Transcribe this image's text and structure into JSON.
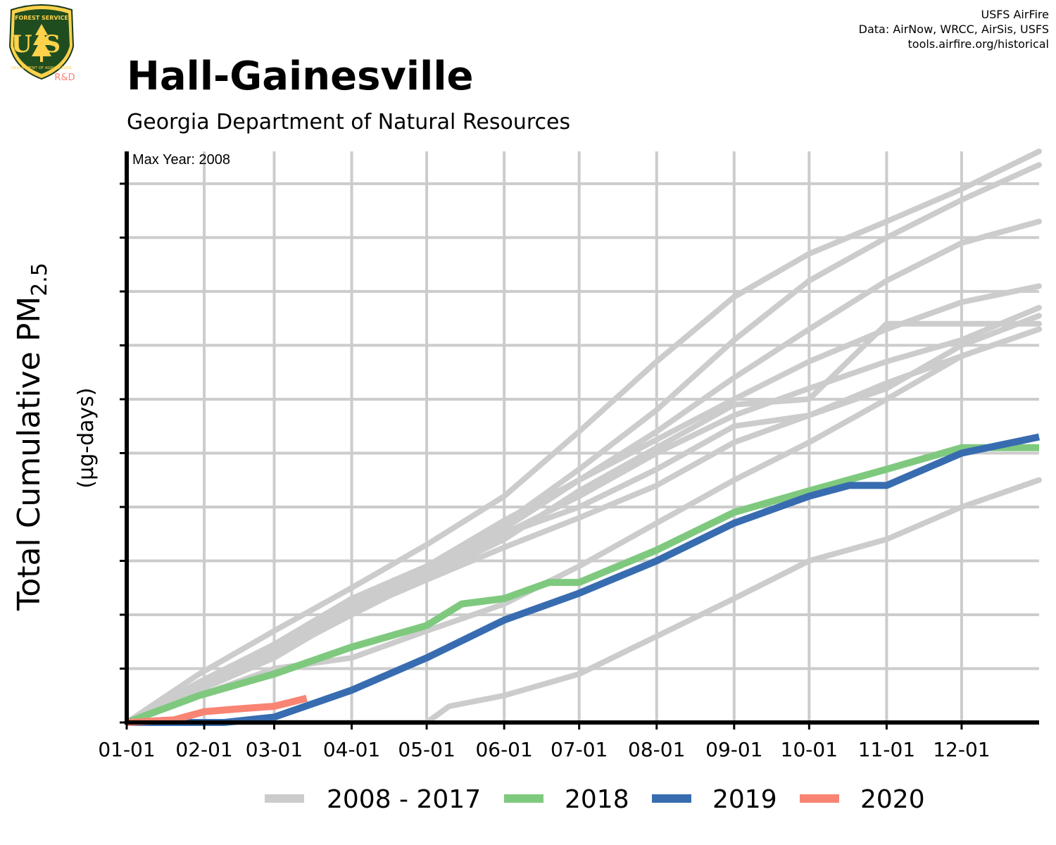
{
  "logo": {
    "agency": "FOREST SERVICE",
    "initials": "US",
    "department": "DEPARTMENT OF AGRICULTURE",
    "tag": "R&D"
  },
  "credits": [
    "USFS AirFire",
    "Data: AirNow, WRCC, AirSis, USFS",
    "tools.airfire.org/historical"
  ],
  "colors": {
    "historical": "#cccccc",
    "y2018": "#7fc97f",
    "y2019": "#386cb0",
    "y2020": "#f98474",
    "grid": "#cccccc",
    "axis": "#000000"
  },
  "chart_data": {
    "type": "line",
    "title": "Hall-Gainesville",
    "subtitle": "Georgia Department of Natural Resources",
    "annotation": "Max Year: 2008",
    "ylabel_main": "Total Cumulative PM",
    "ylabel_sub": "2.5",
    "ylabel_units": "(µg-days)",
    "x_unit": "day of year",
    "xlim": [
      1,
      366
    ],
    "ylim": [
      0,
      106
    ],
    "y_ticks": [
      0,
      10,
      20,
      30,
      40,
      50,
      60,
      70,
      80,
      90,
      100
    ],
    "y_tick_labels_shown": false,
    "x_ticks": [
      {
        "day": 1,
        "label": "01-01"
      },
      {
        "day": 32,
        "label": "02-01"
      },
      {
        "day": 60,
        "label": "03-01"
      },
      {
        "day": 91,
        "label": "04-01"
      },
      {
        "day": 121,
        "label": "05-01"
      },
      {
        "day": 152,
        "label": "06-01"
      },
      {
        "day": 182,
        "label": "07-01"
      },
      {
        "day": 213,
        "label": "08-01"
      },
      {
        "day": 244,
        "label": "09-01"
      },
      {
        "day": 274,
        "label": "10-01"
      },
      {
        "day": 305,
        "label": "11-01"
      },
      {
        "day": 335,
        "label": "12-01"
      }
    ],
    "grid": true,
    "legend_position": "bottom",
    "legend": [
      {
        "label": "2008 - 2017",
        "color": "#cccccc"
      },
      {
        "label": "2018",
        "color": "#7fc97f"
      },
      {
        "label": "2019",
        "color": "#386cb0"
      },
      {
        "label": "2020",
        "color": "#f98474"
      }
    ],
    "historical_group": "2008 - 2017",
    "historical_series": [
      {
        "x": [
          1,
          30,
          60,
          91,
          121,
          152,
          182,
          213,
          244,
          274,
          305,
          335,
          366
        ],
        "y": [
          0,
          9,
          17,
          25,
          33,
          42,
          54,
          67,
          79,
          87,
          93,
          99,
          106
        ]
      },
      {
        "x": [
          1,
          30,
          60,
          91,
          121,
          152,
          182,
          213,
          244,
          274,
          305,
          335,
          366
        ],
        "y": [
          0,
          7.5,
          14,
          22.5,
          29,
          37,
          47,
          58,
          71,
          82,
          90,
          97,
          103.5
        ]
      },
      {
        "x": [
          1,
          30,
          60,
          91,
          121,
          152,
          182,
          213,
          244,
          274,
          305,
          335,
          366
        ],
        "y": [
          0,
          7,
          13.5,
          21.5,
          28,
          36,
          45,
          54,
          64,
          73,
          82,
          89,
          93
        ]
      },
      {
        "x": [
          1,
          30,
          60,
          91,
          121,
          152,
          182,
          213,
          244,
          274,
          305,
          335,
          366
        ],
        "y": [
          0,
          7.5,
          14.5,
          23,
          29,
          37.5,
          45,
          52.5,
          60,
          67,
          73,
          78,
          81
        ]
      },
      {
        "x": [
          1,
          30,
          60,
          91,
          121,
          152,
          182,
          213,
          244,
          274,
          305,
          335,
          366
        ],
        "y": [
          0,
          6.5,
          12.5,
          20,
          27,
          35,
          42,
          50,
          57,
          62,
          67,
          71,
          77
        ]
      },
      {
        "x": [
          1,
          30,
          60,
          91,
          121,
          152,
          182,
          213,
          244,
          274,
          305,
          335,
          366
        ],
        "y": [
          0,
          6,
          13,
          21,
          27,
          34,
          43,
          51,
          59,
          60,
          74,
          74,
          74
        ]
      },
      {
        "x": [
          1,
          30,
          60,
          91,
          121,
          152,
          182,
          213,
          244,
          274,
          305,
          335,
          366
        ],
        "y": [
          0,
          7,
          14,
          22,
          28,
          35,
          40,
          47,
          55,
          57,
          63,
          68,
          73
        ]
      },
      {
        "x": [
          1,
          30,
          60,
          91,
          121,
          152,
          182,
          213,
          244,
          274,
          305,
          335,
          366
        ],
        "y": [
          0,
          6,
          12,
          20.5,
          26.5,
          32.5,
          38,
          44,
          52,
          57,
          62,
          70,
          75.5
        ]
      },
      {
        "x": [
          1,
          30,
          60,
          91,
          121,
          152,
          182,
          213,
          244,
          274,
          305,
          335,
          366
        ],
        "y": [
          0,
          5,
          10,
          12,
          17,
          22,
          29,
          37,
          45,
          52,
          60,
          68,
          73
        ]
      },
      {
        "x": [
          1,
          100,
          121,
          130,
          152,
          182,
          213,
          244,
          274,
          305,
          335,
          366
        ],
        "y": [
          0,
          0,
          0,
          3,
          5,
          9,
          16,
          23,
          30,
          34,
          40,
          45
        ]
      }
    ],
    "series": [
      {
        "name": "2018",
        "color": "#7fc97f",
        "x": [
          1,
          30,
          60,
          91,
          121,
          135,
          152,
          170,
          182,
          213,
          244,
          274,
          305,
          335,
          366
        ],
        "y": [
          0,
          5,
          9,
          14,
          18,
          22,
          23,
          26,
          26,
          32,
          39,
          43,
          47,
          51,
          51
        ]
      },
      {
        "name": "2019",
        "color": "#386cb0",
        "x": [
          1,
          40,
          60,
          91,
          121,
          152,
          182,
          213,
          244,
          274,
          290,
          305,
          335,
          366
        ],
        "y": [
          0,
          0,
          1,
          6,
          12,
          19,
          24,
          30,
          37,
          42,
          44,
          44,
          50,
          53
        ]
      },
      {
        "name": "2020",
        "color": "#f98474",
        "x": [
          1,
          20,
          32,
          45,
          60,
          73
        ],
        "y": [
          0,
          0.5,
          2,
          2.5,
          3,
          4.5
        ]
      }
    ]
  }
}
